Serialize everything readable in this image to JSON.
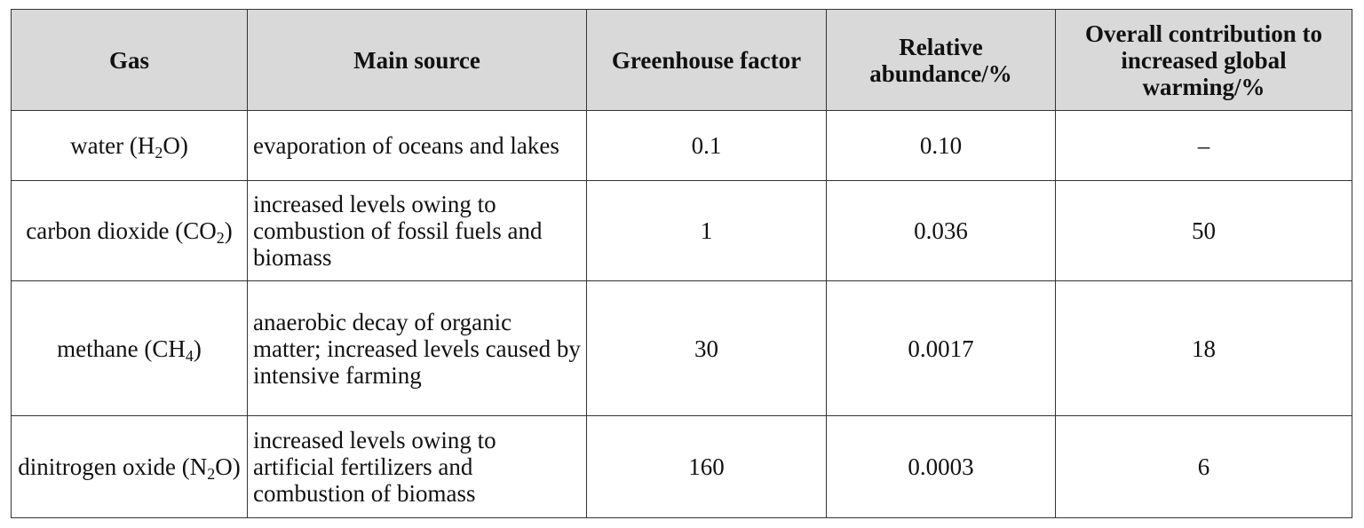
{
  "table": {
    "header": [
      "Gas",
      "Main source",
      "Greenhouse factor",
      "Relative abundance/%",
      "Overall contribution to increased global warming/%"
    ],
    "rows": [
      {
        "gas": [
          "water (H",
          "2",
          "O)"
        ],
        "source": "evaporation of oceans and lakes",
        "factor": "0.1",
        "abundance": "0.10",
        "contribution": "–"
      },
      {
        "gas": [
          "carbon dioxide (CO",
          "2",
          ")"
        ],
        "source": "increased levels owing to combustion of fossil fuels and biomass",
        "factor": "1",
        "abundance": "0.036",
        "contribution": "50"
      },
      {
        "gas": [
          "methane (CH",
          "4",
          ")"
        ],
        "source": "anaerobic decay of organic matter; increased levels caused by intensive farming",
        "factor": "30",
        "abundance": "0.0017",
        "contribution": "18"
      },
      {
        "gas": [
          "dinitrogen oxide (N",
          "2",
          "O)"
        ],
        "source": "increased levels owing to artificial fertilizers and combustion of biomass",
        "factor": "160",
        "abundance": "0.0003",
        "contribution": "6"
      }
    ]
  }
}
